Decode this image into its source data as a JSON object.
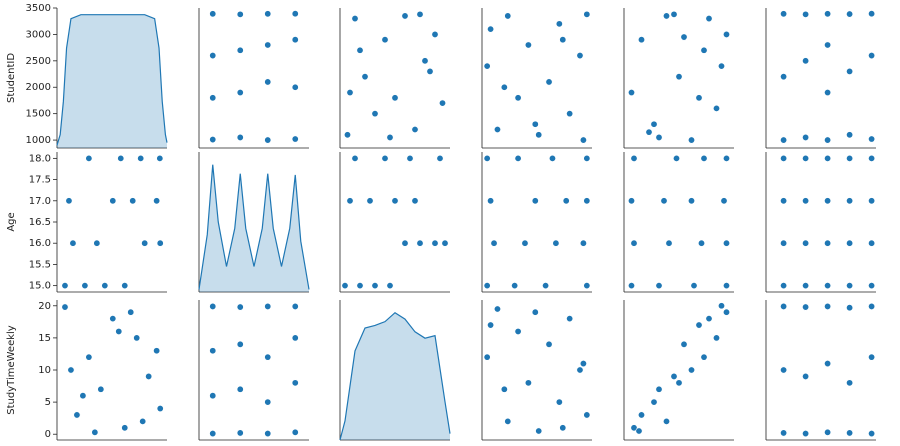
{
  "chart_data": [
    {
      "type": "area",
      "color": "#1f77b4",
      "xlim": [
        800,
        3560
      ],
      "ylim": [
        850,
        3500
      ],
      "yticks": [
        1000,
        1500,
        2000,
        2500,
        3000,
        3500
      ],
      "ylabel": "StudentID",
      "y2lim": [
        0,
        1.05
      ],
      "x": [
        800,
        880,
        960,
        1040,
        1150,
        1400,
        1800,
        2200,
        2600,
        3000,
        3250,
        3360,
        3440,
        3520,
        3560
      ],
      "values": [
        0.02,
        0.1,
        0.35,
        0.75,
        0.97,
        1,
        1,
        1,
        1,
        1,
        0.97,
        0.75,
        0.35,
        0.1,
        0.04
      ],
      "axis": "y2"
    },
    {
      "type": "scatter",
      "color": "#1f77b4",
      "xlim": [
        14.5,
        18.5
      ],
      "ylim": [
        850,
        3500
      ],
      "x": [
        15,
        15,
        15,
        15,
        16,
        16,
        16,
        16,
        17,
        17,
        17,
        17,
        18,
        18,
        18,
        18
      ],
      "y": [
        1010,
        1800,
        2600,
        3390,
        1050,
        1900,
        2700,
        3380,
        1000,
        2100,
        2800,
        3390,
        1020,
        2000,
        2900,
        3392
      ]
    },
    {
      "type": "scatter",
      "color": "#1f77b4",
      "xlim": [
        -1,
        21
      ],
      "ylim": [
        850,
        3500
      ],
      "x": [
        0.5,
        2,
        4,
        6,
        8,
        10,
        12,
        14,
        16,
        18,
        19.5,
        3,
        9,
        15,
        1,
        17
      ],
      "y": [
        1100,
        3300,
        2200,
        1500,
        2900,
        1800,
        3350,
        1200,
        2500,
        3000,
        1700,
        2700,
        1050,
        3380,
        1900,
        2300
      ]
    },
    {
      "type": "scatter",
      "color": "#1f77b4",
      "xlim": [
        -1.5,
        30.5
      ],
      "ylim": [
        850,
        3500
      ],
      "x": [
        0,
        3,
        6,
        9,
        12,
        15,
        18,
        21,
        24,
        27,
        29,
        5,
        14,
        22,
        1,
        28
      ],
      "y": [
        2400,
        1200,
        3350,
        1800,
        2800,
        1100,
        2100,
        3200,
        1500,
        2600,
        3380,
        2000,
        1300,
        2900,
        3100,
        1000
      ]
    },
    {
      "type": "scatter",
      "color": "#1f77b4",
      "xlim": [
        -0.2,
        4.2
      ],
      "ylim": [
        850,
        3500
      ],
      "x": [
        0.1,
        0.5,
        1,
        1.5,
        2,
        2.5,
        3,
        3.5,
        3.9,
        0.8,
        1.8,
        2.8,
        3.7,
        2.2,
        1.2,
        3.2
      ],
      "y": [
        1900,
        2900,
        1300,
        3350,
        2200,
        1000,
        2700,
        1600,
        3000,
        1150,
        3380,
        1800,
        2400,
        2950,
        1050,
        3300
      ]
    },
    {
      "type": "scatter",
      "color": "#1f77b4",
      "xlim": [
        -0.8,
        4.2
      ],
      "ylim": [
        850,
        3500
      ],
      "x": [
        0,
        0,
        0,
        1,
        1,
        1,
        2,
        2,
        2,
        3,
        3,
        3,
        4,
        4,
        4,
        2
      ],
      "y": [
        1000,
        2200,
        3390,
        1050,
        2500,
        3380,
        1000,
        1900,
        3390,
        1100,
        2300,
        3385,
        1020,
        2600,
        3392,
        2800
      ]
    },
    {
      "type": "scatter",
      "color": "#1f77b4",
      "xlim": [
        800,
        3560
      ],
      "ylim": [
        14.85,
        18.15
      ],
      "ylabel": "Age",
      "yticks": [
        {
          "value": 15,
          "label": "15.0"
        },
        {
          "value": 15.5,
          "label": "15.5"
        },
        {
          "value": 16,
          "label": "16.0"
        },
        {
          "value": 16.5,
          "label": "16.5"
        },
        {
          "value": 17,
          "label": "17.0"
        },
        {
          "value": 17.5,
          "label": "17.5"
        },
        {
          "value": 18,
          "label": "18.0"
        }
      ],
      "x": [
        1000,
        1500,
        2000,
        2500,
        3000,
        3390,
        1200,
        1800,
        2700,
        3300,
        1100,
        2200,
        2900,
        3380,
        1600,
        2400
      ],
      "y": [
        15,
        15,
        15,
        15,
        16,
        16,
        16,
        16,
        17,
        17,
        17,
        17,
        18,
        18,
        18,
        18
      ]
    },
    {
      "type": "area",
      "color": "#1f77b4",
      "xlim": [
        14.5,
        18.5
      ],
      "ylim": [
        14.85,
        18.15
      ],
      "y2lim": [
        0,
        1.1
      ],
      "x": [
        14.5,
        14.8,
        15,
        15.2,
        15.5,
        15.8,
        16,
        16.2,
        16.5,
        16.8,
        17,
        17.2,
        17.5,
        17.8,
        18,
        18.2,
        18.5
      ],
      "values": [
        0.02,
        0.45,
        1,
        0.55,
        0.2,
        0.5,
        0.93,
        0.5,
        0.2,
        0.5,
        0.93,
        0.5,
        0.2,
        0.5,
        0.92,
        0.4,
        0.02
      ],
      "axis": "y2"
    },
    {
      "type": "scatter",
      "color": "#1f77b4",
      "xlim": [
        -1,
        21
      ],
      "ylim": [
        14.85,
        18.15
      ],
      "x": [
        0,
        3,
        6,
        9,
        12,
        15,
        18,
        20,
        1,
        5,
        10,
        14,
        2,
        8,
        13,
        19
      ],
      "y": [
        15,
        15,
        15,
        15,
        16,
        16,
        16,
        16,
        17,
        17,
        17,
        17,
        18,
        18,
        18,
        18
      ]
    },
    {
      "type": "scatter",
      "color": "#1f77b4",
      "xlim": [
        -1.5,
        30.5
      ],
      "ylim": [
        14.85,
        18.15
      ],
      "x": [
        0,
        8,
        17,
        29,
        2,
        11,
        20,
        28,
        1,
        14,
        23,
        29,
        0,
        9,
        19,
        29
      ],
      "y": [
        15,
        15,
        15,
        15,
        16,
        16,
        16,
        16,
        17,
        17,
        17,
        17,
        18,
        18,
        18,
        18
      ]
    },
    {
      "type": "scatter",
      "color": "#1f77b4",
      "xlim": [
        -0.2,
        4.2
      ],
      "ylim": [
        14.85,
        18.15
      ],
      "x": [
        0.1,
        1.2,
        2.6,
        3.9,
        0.2,
        1.6,
        2.9,
        3.9,
        0.1,
        1.4,
        2.5,
        3.8,
        0.2,
        1.9,
        3,
        3.9
      ],
      "y": [
        15,
        15,
        15,
        15,
        16,
        16,
        16,
        16,
        17,
        17,
        17,
        17,
        18,
        18,
        18,
        18
      ]
    },
    {
      "type": "scatter",
      "color": "#1f77b4",
      "xlim": [
        -0.8,
        4.2
      ],
      "ylim": [
        14.85,
        18.15
      ],
      "x": [
        0,
        1,
        2,
        3,
        4,
        0,
        1,
        2,
        3,
        4,
        0,
        1,
        2,
        3,
        4,
        0,
        1,
        2,
        3,
        4
      ],
      "y": [
        15,
        15,
        15,
        15,
        15,
        16,
        16,
        16,
        16,
        16,
        17,
        17,
        17,
        17,
        17,
        18,
        18,
        18,
        18,
        18
      ]
    },
    {
      "type": "scatter",
      "color": "#1f77b4",
      "xlim": [
        800,
        3560
      ],
      "ylim": [
        -0.9,
        20.9
      ],
      "ylabel": "StudyTimeWeekly",
      "yticks": [
        0,
        5,
        10,
        15,
        20
      ],
      "x": [
        1000,
        1300,
        1600,
        1900,
        2200,
        2500,
        2800,
        3100,
        3390,
        1150,
        1750,
        2350,
        2950,
        3300,
        1450,
        2650
      ],
      "y": [
        19.8,
        3,
        12,
        7,
        18,
        1,
        15,
        9,
        4,
        10,
        0.3,
        16,
        2,
        13,
        6,
        19
      ]
    },
    {
      "type": "scatter",
      "color": "#1f77b4",
      "xlim": [
        14.5,
        18.5
      ],
      "ylim": [
        -0.9,
        20.9
      ],
      "x": [
        15,
        15,
        15,
        15,
        16,
        16,
        16,
        16,
        17,
        17,
        17,
        17,
        18,
        18,
        18,
        18
      ],
      "y": [
        0.1,
        6,
        13,
        19.9,
        0.2,
        7,
        14,
        19.8,
        0.1,
        5,
        12,
        19.9,
        0.3,
        8,
        15,
        19.9
      ]
    },
    {
      "type": "area",
      "color": "#1f77b4",
      "xlim": [
        -1,
        21
      ],
      "ylim": [
        -0.9,
        20.9
      ],
      "y2lim": [
        0,
        1.1
      ],
      "x": [
        -1,
        0,
        2,
        4,
        6,
        8,
        10,
        12,
        14,
        16,
        18,
        20,
        21
      ],
      "values": [
        0,
        0.15,
        0.7,
        0.88,
        0.9,
        0.93,
        1,
        0.95,
        0.85,
        0.8,
        0.82,
        0.3,
        0.05
      ],
      "axis": "y2"
    },
    {
      "type": "scatter",
      "color": "#1f77b4",
      "xlim": [
        -1.5,
        30.5
      ],
      "ylim": [
        -0.9,
        20.9
      ],
      "x": [
        0,
        3,
        6,
        9,
        12,
        15,
        18,
        21,
        24,
        27,
        29,
        5,
        14,
        22,
        1,
        28
      ],
      "y": [
        12,
        19.5,
        2,
        16,
        8,
        0.5,
        14,
        5,
        18,
        10,
        3,
        7,
        19,
        1,
        17,
        11
      ]
    },
    {
      "type": "scatter",
      "color": "#1f77b4",
      "xlim": [
        -0.2,
        4.2
      ],
      "ylim": [
        -0.9,
        20.9
      ],
      "x": [
        0.2,
        0.5,
        1,
        1.5,
        2,
        2.5,
        3,
        3.5,
        3.9,
        1.2,
        2.2,
        3.2,
        0.4,
        2.8,
        3.7,
        1.8
      ],
      "y": [
        1,
        3,
        5,
        2,
        8,
        10,
        12,
        15,
        19,
        7,
        14,
        18,
        0.5,
        17,
        20,
        9
      ]
    },
    {
      "type": "scatter",
      "color": "#1f77b4",
      "xlim": [
        -0.8,
        4.2
      ],
      "ylim": [
        -0.9,
        20.9
      ],
      "x": [
        0,
        0,
        0,
        1,
        1,
        1,
        2,
        2,
        2,
        3,
        3,
        3,
        4,
        4,
        4
      ],
      "y": [
        0.2,
        10,
        19.9,
        0.1,
        9,
        19.8,
        0.3,
        11,
        19.9,
        0.2,
        8,
        19.7,
        0.1,
        12,
        19.9
      ]
    }
  ]
}
